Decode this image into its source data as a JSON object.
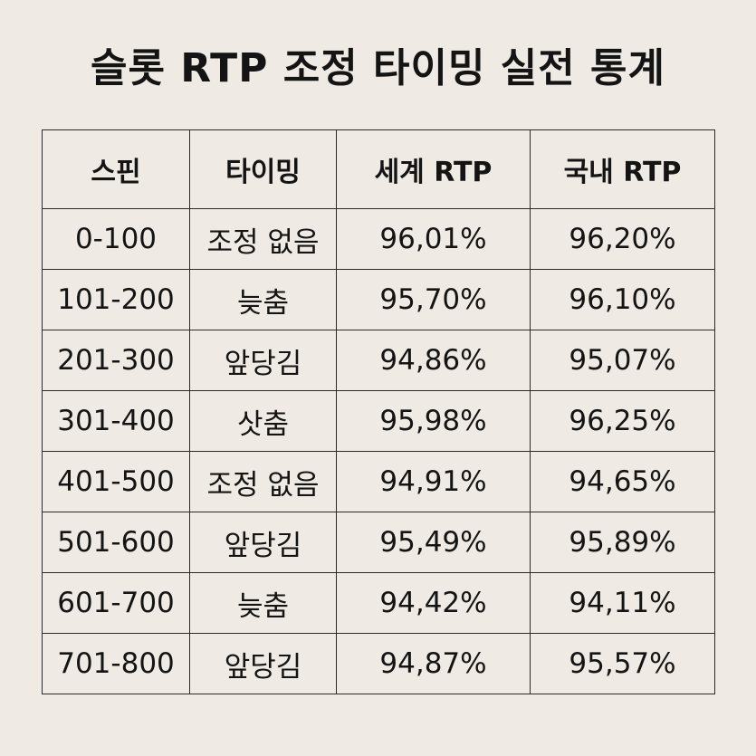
{
  "chart_data": {
    "type": "table",
    "title": "슬롯 RTP 조정 타이밍 실전 통계",
    "columns": [
      "스핀",
      "타이밍",
      "세계 RTP",
      "국내 RTP"
    ],
    "rows": [
      [
        "0-100",
        "조정 없음",
        "96,01%",
        "96,20%"
      ],
      [
        "101-200",
        "늦춤",
        "95,70%",
        "96,10%"
      ],
      [
        "201-300",
        "앞당김",
        "94,86%",
        "95,07%"
      ],
      [
        "301-400",
        "삿춤",
        "95,98%",
        "96,25%"
      ],
      [
        "401-500",
        "조정 없음",
        "94,91%",
        "94,65%"
      ],
      [
        "501-600",
        "앞당김",
        "95,49%",
        "95,89%"
      ],
      [
        "601-700",
        "늦춤",
        "94,42%",
        "94,11%"
      ],
      [
        "701-800",
        "앞당김",
        "94,87%",
        "95,57%"
      ]
    ]
  }
}
